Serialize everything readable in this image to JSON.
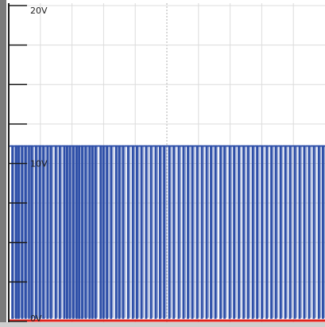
{
  "chart_data": {
    "type": "line",
    "title": "",
    "xlabel": "",
    "ylabel": "",
    "ylim": [
      0,
      20
    ],
    "y_tick_labels": [
      {
        "value": 20,
        "text": "20V"
      },
      {
        "value": 10,
        "text": "10V"
      },
      {
        "value": 0,
        "text": "0V"
      }
    ],
    "minor_y_ticks": [
      0,
      2.5,
      5,
      7.5,
      10,
      12.5,
      15,
      17.5,
      20
    ],
    "grid": true,
    "legend": "none",
    "colors": {
      "background": "#ffffff",
      "grid": "#dcdcdc",
      "center_line": "#b0b0b0",
      "frame": "#7a7a7a",
      "axis": "#1a1a1a",
      "signal": "#2e4fa8",
      "reference": "#e0231c"
    },
    "series": [
      {
        "high_level": 11.1,
        "low_level": 0.2,
        "x_range": [
          0,
          1
        ],
        "low_pulses": [
          [
            0.01,
            0.014
          ],
          [
            0.022,
            0.025
          ],
          [
            0.03,
            0.033
          ],
          [
            0.041,
            0.044
          ],
          [
            0.052,
            0.055
          ],
          [
            0.063,
            0.065
          ],
          [
            0.071,
            0.075
          ],
          [
            0.085,
            0.088
          ],
          [
            0.097,
            0.1
          ],
          [
            0.108,
            0.112
          ],
          [
            0.121,
            0.124
          ],
          [
            0.132,
            0.135
          ],
          [
            0.147,
            0.15
          ],
          [
            0.16,
            0.163
          ],
          [
            0.174,
            0.177
          ],
          [
            0.183,
            0.186
          ],
          [
            0.192,
            0.195
          ],
          [
            0.203,
            0.206
          ],
          [
            0.213,
            0.216
          ],
          [
            0.221,
            0.225
          ],
          [
            0.231,
            0.234
          ],
          [
            0.242,
            0.245
          ],
          [
            0.254,
            0.257
          ],
          [
            0.263,
            0.266
          ],
          [
            0.273,
            0.276
          ],
          [
            0.289,
            0.292
          ],
          [
            0.298,
            0.301
          ],
          [
            0.309,
            0.312
          ],
          [
            0.322,
            0.325
          ],
          [
            0.338,
            0.341
          ],
          [
            0.348,
            0.351
          ],
          [
            0.36,
            0.363
          ],
          [
            0.376,
            0.379
          ],
          [
            0.391,
            0.394
          ],
          [
            0.404,
            0.407
          ],
          [
            0.418,
            0.421
          ],
          [
            0.433,
            0.436
          ],
          [
            0.448,
            0.451
          ],
          [
            0.463,
            0.466
          ],
          [
            0.477,
            0.48
          ],
          [
            0.49,
            0.493
          ],
          [
            0.506,
            0.509
          ],
          [
            0.52,
            0.523
          ],
          [
            0.536,
            0.539
          ],
          [
            0.551,
            0.554
          ],
          [
            0.565,
            0.568
          ],
          [
            0.579,
            0.582
          ],
          [
            0.594,
            0.597
          ],
          [
            0.609,
            0.612
          ],
          [
            0.624,
            0.627
          ],
          [
            0.638,
            0.641
          ],
          [
            0.652,
            0.655
          ],
          [
            0.668,
            0.671
          ],
          [
            0.681,
            0.684
          ],
          [
            0.697,
            0.7
          ],
          [
            0.711,
            0.714
          ],
          [
            0.726,
            0.729
          ],
          [
            0.741,
            0.744
          ],
          [
            0.755,
            0.758
          ],
          [
            0.77,
            0.773
          ],
          [
            0.784,
            0.787
          ],
          [
            0.799,
            0.802
          ],
          [
            0.814,
            0.817
          ],
          [
            0.829,
            0.832
          ],
          [
            0.843,
            0.846
          ],
          [
            0.858,
            0.861
          ],
          [
            0.873,
            0.876
          ],
          [
            0.888,
            0.891
          ],
          [
            0.903,
            0.906
          ],
          [
            0.918,
            0.921
          ],
          [
            0.933,
            0.936
          ],
          [
            0.948,
            0.951
          ],
          [
            0.963,
            0.966
          ],
          [
            0.979,
            0.982
          ],
          [
            0.992,
            0.995
          ]
        ]
      },
      {
        "role": "reference",
        "values": [
          0,
          0
        ]
      }
    ]
  }
}
